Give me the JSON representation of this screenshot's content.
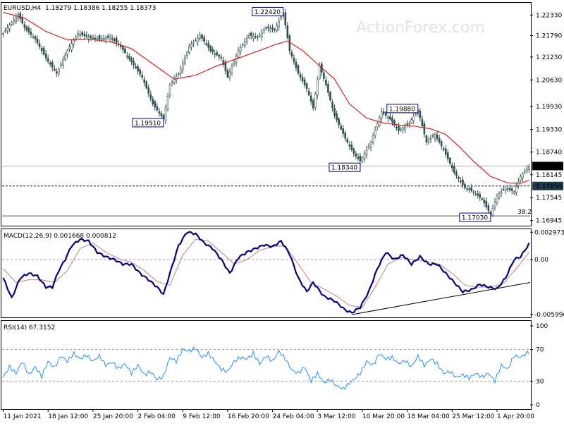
{
  "chart_data": [
    {
      "type": "candlestick",
      "panel": "price",
      "symbol_label": "EURUSD,H4",
      "ohlc_label": "1.18279 1.18386 1.18255 1.18373",
      "ylim": [
        1.1681,
        1.2265
      ],
      "y_ticks": [
        "1.22330",
        "1.21790",
        "1.21230",
        "1.20630",
        "1.19930",
        "1.19330",
        "1.18740",
        "1.18145",
        "1.17545",
        "1.16945"
      ],
      "close_path": [
        [
          0,
          1.2185
        ],
        [
          7,
          1.2235
        ],
        [
          10,
          1.22
        ],
        [
          15,
          1.217
        ],
        [
          20,
          1.212
        ],
        [
          25,
          1.208
        ],
        [
          30,
          1.214
        ],
        [
          35,
          1.2185
        ],
        [
          40,
          1.2175
        ],
        [
          45,
          1.217
        ],
        [
          50,
          1.2175
        ],
        [
          55,
          1.215
        ],
        [
          60,
          1.211
        ],
        [
          65,
          1.207
        ],
        [
          70,
          1.2
        ],
        [
          75,
          1.196
        ],
        [
          78,
          1.205
        ],
        [
          82,
          1.208
        ],
        [
          87,
          1.215
        ],
        [
          92,
          1.218
        ],
        [
          97,
          1.214
        ],
        [
          102,
          1.212
        ],
        [
          105,
          1.207
        ],
        [
          110,
          1.214
        ],
        [
          115,
          1.218
        ],
        [
          119,
          1.2175
        ],
        [
          123,
          1.22
        ],
        [
          127,
          1.2195
        ],
        [
          131,
          1.224
        ],
        [
          134,
          1.214
        ],
        [
          138,
          1.208
        ],
        [
          142,
          1.204
        ],
        [
          145,
          1.199
        ],
        [
          148,
          1.21
        ],
        [
          151,
          1.205
        ],
        [
          155,
          1.197
        ],
        [
          160,
          1.191
        ],
        [
          164,
          1.187
        ],
        [
          167,
          1.185
        ],
        [
          172,
          1.19
        ],
        [
          177,
          1.198
        ],
        [
          181,
          1.196
        ],
        [
          185,
          1.193
        ],
        [
          190,
          1.195
        ],
        [
          194,
          1.1985
        ],
        [
          198,
          1.19
        ],
        [
          202,
          1.192
        ],
        [
          206,
          1.188
        ],
        [
          211,
          1.182
        ],
        [
          216,
          1.178
        ],
        [
          220,
          1.177
        ],
        [
          224,
          1.175
        ],
        [
          228,
          1.171
        ],
        [
          231,
          1.176
        ],
        [
          235,
          1.178
        ],
        [
          239,
          1.177
        ],
        [
          242,
          1.181
        ],
        [
          246,
          1.1837
        ]
      ],
      "ma_path": [
        [
          0,
          1.224
        ],
        [
          10,
          1.2225
        ],
        [
          20,
          1.219
        ],
        [
          30,
          1.2168
        ],
        [
          40,
          1.217
        ],
        [
          50,
          1.2163
        ],
        [
          60,
          1.2145
        ],
        [
          70,
          1.2105
        ],
        [
          80,
          1.2065
        ],
        [
          90,
          1.2075
        ],
        [
          100,
          1.21
        ],
        [
          110,
          1.212
        ],
        [
          120,
          1.214
        ],
        [
          127,
          1.2155
        ],
        [
          133,
          1.2165
        ],
        [
          140,
          1.214
        ],
        [
          148,
          1.21
        ],
        [
          155,
          1.2065
        ],
        [
          162,
          1.2
        ],
        [
          170,
          1.1963
        ],
        [
          178,
          1.195
        ],
        [
          185,
          1.1945
        ],
        [
          192,
          1.1942
        ],
        [
          200,
          1.1935
        ],
        [
          207,
          1.192
        ],
        [
          213,
          1.189
        ],
        [
          220,
          1.185
        ],
        [
          228,
          1.181
        ],
        [
          236,
          1.1793
        ],
        [
          242,
          1.1792
        ],
        [
          246,
          1.18
        ]
      ],
      "annotations": [
        {
          "label": "1.22420",
          "x": 131,
          "y": 1.2242,
          "side": "left"
        },
        {
          "label": "1.19510",
          "x": 75,
          "y": 1.1951,
          "side": "left"
        },
        {
          "label": "1.18340",
          "x": 167,
          "y": 1.1834,
          "side": "left"
        },
        {
          "label": "1.19880",
          "x": 194,
          "y": 1.1988,
          "side": "left"
        },
        {
          "label": "1.17030",
          "x": 228,
          "y": 1.1703,
          "side": "left"
        }
      ],
      "current_price_label": "1.18373",
      "current_price": 1.18373,
      "level_label": "1.17850",
      "level": 1.1785,
      "fib_label": "38.2",
      "fib_level": 1.1703
    },
    {
      "type": "line",
      "panel": "macd",
      "title": "MACD(12,26,9) 0.001668 0.000812",
      "ylim": [
        -0.0063,
        0.0033
      ],
      "y_ticks": [
        "0.002973",
        "0.00",
        "-0.005996"
      ],
      "macd_path": [
        [
          0,
          -0.002
        ],
        [
          4,
          -0.0042
        ],
        [
          8,
          -0.002
        ],
        [
          12,
          -0.0015
        ],
        [
          16,
          -0.0018
        ],
        [
          20,
          -0.003
        ],
        [
          23,
          -0.003
        ],
        [
          26,
          -0.0012
        ],
        [
          29,
          0.0
        ],
        [
          32,
          0.0015
        ],
        [
          36,
          0.0022
        ],
        [
          40,
          0.002
        ],
        [
          44,
          0.0008
        ],
        [
          48,
          0.0003
        ],
        [
          52,
          0.0
        ],
        [
          56,
          -0.0005
        ],
        [
          60,
          -0.0005
        ],
        [
          64,
          -0.0015
        ],
        [
          68,
          -0.0022
        ],
        [
          72,
          -0.003
        ],
        [
          75,
          -0.0038
        ],
        [
          78,
          -0.0015
        ],
        [
          82,
          0.0015
        ],
        [
          86,
          0.003
        ],
        [
          90,
          0.0028
        ],
        [
          94,
          0.0018
        ],
        [
          98,
          0.0012
        ],
        [
          102,
          0.0
        ],
        [
          106,
          -0.0015
        ],
        [
          110,
          0.0002
        ],
        [
          114,
          0.0008
        ],
        [
          118,
          0.0012
        ],
        [
          122,
          0.0016
        ],
        [
          126,
          0.0014
        ],
        [
          130,
          0.002
        ],
        [
          134,
          0.0006
        ],
        [
          138,
          -0.002
        ],
        [
          142,
          -0.0035
        ],
        [
          145,
          -0.0025
        ],
        [
          150,
          -0.004
        ],
        [
          155,
          -0.0045
        ],
        [
          160,
          -0.0055
        ],
        [
          163,
          -0.0058
        ],
        [
          167,
          -0.0052
        ],
        [
          171,
          -0.0035
        ],
        [
          175,
          -0.001
        ],
        [
          179,
          0.0008
        ],
        [
          183,
          0.0
        ],
        [
          187,
          0.0005
        ],
        [
          191,
          -0.0005
        ],
        [
          195,
          0.0003
        ],
        [
          199,
          -0.0005
        ],
        [
          203,
          -0.0005
        ],
        [
          207,
          -0.0015
        ],
        [
          211,
          -0.0025
        ],
        [
          215,
          -0.0035
        ],
        [
          219,
          -0.0033
        ],
        [
          223,
          -0.0027
        ],
        [
          227,
          -0.003
        ],
        [
          231,
          -0.0032
        ],
        [
          235,
          -0.002
        ],
        [
          239,
          0.0
        ],
        [
          242,
          0.0003
        ],
        [
          246,
          0.0017
        ]
      ],
      "signal_path": [
        [
          0,
          -0.001
        ],
        [
          6,
          -0.0025
        ],
        [
          12,
          -0.0022
        ],
        [
          18,
          -0.0022
        ],
        [
          24,
          -0.0025
        ],
        [
          30,
          -0.0012
        ],
        [
          36,
          0.0012
        ],
        [
          42,
          0.0018
        ],
        [
          48,
          0.0008
        ],
        [
          54,
          0.0001
        ],
        [
          60,
          -0.0003
        ],
        [
          66,
          -0.0012
        ],
        [
          72,
          -0.0024
        ],
        [
          78,
          -0.0028
        ],
        [
          84,
          0.0005
        ],
        [
          90,
          0.0022
        ],
        [
          96,
          0.002
        ],
        [
          102,
          0.0008
        ],
        [
          108,
          -0.0005
        ],
        [
          114,
          0.0
        ],
        [
          120,
          0.001
        ],
        [
          126,
          0.0014
        ],
        [
          132,
          0.0015
        ],
        [
          138,
          -0.0005
        ],
        [
          144,
          -0.0025
        ],
        [
          150,
          -0.0032
        ],
        [
          156,
          -0.004
        ],
        [
          162,
          -0.005
        ],
        [
          168,
          -0.0052
        ],
        [
          174,
          -0.003
        ],
        [
          180,
          -0.0005
        ],
        [
          186,
          0.0002
        ],
        [
          192,
          0.0
        ],
        [
          198,
          -0.0002
        ],
        [
          204,
          -0.0005
        ],
        [
          210,
          -0.0015
        ],
        [
          216,
          -0.0028
        ],
        [
          222,
          -0.003
        ],
        [
          228,
          -0.003
        ],
        [
          234,
          -0.0026
        ],
        [
          240,
          -0.001
        ],
        [
          246,
          0.0008
        ]
      ],
      "trendline": [
        [
          163,
          -0.006
        ],
        [
          250,
          -0.0025
        ]
      ]
    },
    {
      "type": "line",
      "panel": "rsi",
      "title": "RSI(14) 67.3152",
      "ylim": [
        0,
        100
      ],
      "y_ticks": [
        "100",
        "70",
        "30",
        "0"
      ],
      "levels": [
        70,
        30
      ],
      "rsi_path": [
        [
          0,
          35
        ],
        [
          3,
          48
        ],
        [
          6,
          40
        ],
        [
          9,
          55
        ],
        [
          12,
          38
        ],
        [
          15,
          48
        ],
        [
          18,
          36
        ],
        [
          21,
          55
        ],
        [
          24,
          47
        ],
        [
          27,
          62
        ],
        [
          30,
          55
        ],
        [
          33,
          65
        ],
        [
          36,
          58
        ],
        [
          39,
          63
        ],
        [
          42,
          55
        ],
        [
          45,
          62
        ],
        [
          48,
          50
        ],
        [
          51,
          54
        ],
        [
          54,
          46
        ],
        [
          57,
          52
        ],
        [
          60,
          40
        ],
        [
          63,
          50
        ],
        [
          66,
          38
        ],
        [
          69,
          42
        ],
        [
          72,
          32
        ],
        [
          75,
          36
        ],
        [
          78,
          60
        ],
        [
          81,
          55
        ],
        [
          84,
          70
        ],
        [
          87,
          68
        ],
        [
          90,
          72
        ],
        [
          93,
          60
        ],
        [
          96,
          65
        ],
        [
          99,
          55
        ],
        [
          102,
          45
        ],
        [
          105,
          42
        ],
        [
          108,
          55
        ],
        [
          111,
          60
        ],
        [
          114,
          58
        ],
        [
          117,
          65
        ],
        [
          120,
          52
        ],
        [
          123,
          62
        ],
        [
          126,
          55
        ],
        [
          129,
          68
        ],
        [
          132,
          58
        ],
        [
          135,
          44
        ],
        [
          138,
          40
        ],
        [
          141,
          48
        ],
        [
          144,
          30
        ],
        [
          147,
          40
        ],
        [
          150,
          28
        ],
        [
          153,
          32
        ],
        [
          156,
          24
        ],
        [
          159,
          20
        ],
        [
          161,
          25
        ],
        [
          164,
          32
        ],
        [
          167,
          40
        ],
        [
          170,
          55
        ],
        [
          173,
          50
        ],
        [
          176,
          65
        ],
        [
          179,
          58
        ],
        [
          182,
          60
        ],
        [
          185,
          52
        ],
        [
          188,
          56
        ],
        [
          191,
          48
        ],
        [
          194,
          62
        ],
        [
          197,
          50
        ],
        [
          200,
          58
        ],
        [
          203,
          52
        ],
        [
          206,
          40
        ],
        [
          209,
          42
        ],
        [
          212,
          35
        ],
        [
          215,
          38
        ],
        [
          218,
          34
        ],
        [
          221,
          40
        ],
        [
          224,
          35
        ],
        [
          227,
          40
        ],
        [
          230,
          30
        ],
        [
          233,
          50
        ],
        [
          236,
          45
        ],
        [
          239,
          62
        ],
        [
          242,
          60
        ],
        [
          246,
          67.3
        ]
      ]
    }
  ],
  "x_axis": {
    "tick_labels": [
      "11 Jan 2021",
      "18 Jan 12:00",
      "25 Jan 20:00",
      "2 Feb 04:00",
      "9 Feb 12:00",
      "16 Feb 20:00",
      "24 Feb 04:00",
      "3 Mar 12:00",
      "10 Mar 20:00",
      "18 Mar 04:00",
      "25 Mar 12:00",
      "1 Apr 20:00"
    ],
    "tick_bars": [
      0,
      21,
      42,
      63,
      84,
      105,
      126,
      147,
      168,
      189,
      210,
      231
    ],
    "bar_count": 247
  },
  "watermark": "ActionForex.com",
  "colors": {
    "candle": "#2f4f4f",
    "ma": "#d42020",
    "macd": "#000080",
    "signal": "#c08080",
    "rsi": "#1e90ff",
    "label_bg_dark": "#1f3a4a",
    "label_fg": "#ffffff"
  }
}
